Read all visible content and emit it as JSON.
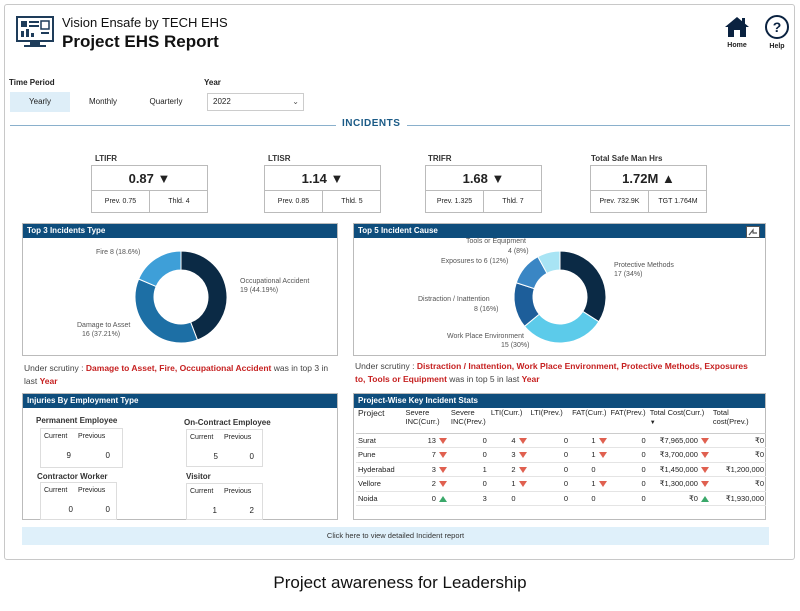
{
  "header": {
    "brand": "Vision Ensafe by TECH EHS",
    "title": "Project EHS Report",
    "home_label": "Home",
    "help_label": "Help"
  },
  "filters": {
    "time_period_label": "Time Period",
    "periods": [
      "Yearly",
      "Monthly",
      "Quarterly"
    ],
    "active_period": "Yearly",
    "year_label": "Year",
    "year_value": "2022"
  },
  "section_title": "INCIDENTS",
  "kpis": [
    {
      "label": "LTIFR",
      "value": "0.87",
      "arrow": "▼",
      "prev": "Prev.  0.75",
      "thld": "Thld.  4"
    },
    {
      "label": "LTISR",
      "value": "1.14",
      "arrow": "▼",
      "prev": "Prev. 0.85",
      "thld": "Thld. 5"
    },
    {
      "label": "TRIFR",
      "value": "1.68",
      "arrow": "▼",
      "prev": "Prev. 1.325",
      "thld": "Thld. 7"
    },
    {
      "label": "Total Safe Man Hrs",
      "value": "1.72M",
      "arrow": "▲",
      "prev": "Prev. 732.9K",
      "thld": "TGT 1.764M"
    }
  ],
  "top3": {
    "title": "Top 3 Incidents Type",
    "slices": [
      {
        "name": "Occupational Accident",
        "value": 19,
        "pct": "44.19%",
        "color": "#0b2a45"
      },
      {
        "name": "Damage to Asset",
        "value": 16,
        "pct": "37.21%",
        "color": "#1d6fa5"
      },
      {
        "name": "Fire",
        "value": 8,
        "pct": "18.6%",
        "color": "#3e9fd8"
      }
    ],
    "labels": {
      "fire": "Fire 8 (18.6%)",
      "occ_name": "Occupational Accident",
      "occ_val": "19 (44.19%)",
      "dmg_name": "Damage to Asset",
      "dmg_val": "16 (37.21%)"
    },
    "scrutiny_prefix": "Under scrutiny : ",
    "scrutiny_items": "Damage to Asset, Fire, Occupational Accident",
    "scrutiny_mid": " was in top 3 in last ",
    "scrutiny_year": "Year"
  },
  "top5": {
    "title": "Top 5 Incident Cause",
    "slices": [
      {
        "name": "Protective Methods",
        "value": 17,
        "pct": "34%",
        "color": "#0b2a45"
      },
      {
        "name": "Work Place Environment",
        "value": 15,
        "pct": "30%",
        "color": "#5ccbea"
      },
      {
        "name": "Distraction / Inattention",
        "value": 8,
        "pct": "16%",
        "color": "#1d5e9a"
      },
      {
        "name": "Exposures to",
        "value": 6,
        "pct": "12%",
        "color": "#3a86c4"
      },
      {
        "name": "Tools or Equipment",
        "value": 4,
        "pct": "8%",
        "color": "#a8e4f4"
      }
    ],
    "labels": {
      "tools_name": "Tools or Equipment",
      "tools_val": "4 (8%)",
      "exp": "Exposures to 6 (12%)",
      "prot_name": "Protective Methods",
      "prot_val": "17 (34%)",
      "dist_name": "Distraction / Inattention",
      "dist_val": "8 (16%)",
      "wpe_name": "Work Place Environment",
      "wpe_val": "15 (30%)"
    },
    "scrutiny_prefix": "Under scrutiny : ",
    "scrutiny_items": "Distraction / Inattention, Work Place Environment, Protective Methods, Exposures to, Tools or Equipment",
    "scrutiny_mid": " was in top 5 in last ",
    "scrutiny_year": "Year"
  },
  "injuries": {
    "title": "Injuries By Employment Type",
    "current_label": "Current",
    "previous_label": "Previous",
    "groups": [
      {
        "name": "Permanent Employee",
        "current": "9",
        "previous": "0"
      },
      {
        "name": "On-Contract Employee",
        "current": "5",
        "previous": "0"
      },
      {
        "name": "Contractor Worker",
        "current": "0",
        "previous": "0"
      },
      {
        "name": "Visitor",
        "current": "1",
        "previous": "2"
      }
    ]
  },
  "project_stats": {
    "title": "Project-Wise Key Incident Stats",
    "columns": [
      "Project",
      "Severe INC(Curr.)",
      "Severe INC(Prev.)",
      "LTI(Curr.)",
      "LTI(Prev.)",
      "FAT(Curr.)",
      "FAT(Prev.)",
      "Total Cost(Curr.)",
      "Total cost(Prev.)"
    ],
    "rows": [
      {
        "project": "Surat",
        "sev_c": "13",
        "sev_c_trend": "down",
        "sev_p": "0",
        "lti_c": "4",
        "lti_c_trend": "down",
        "lti_p": "0",
        "fat_c": "1",
        "fat_c_trend": "down",
        "fat_p": "0",
        "cost_c": "₹7,965,000",
        "cost_c_trend": "down",
        "cost_p": "₹0"
      },
      {
        "project": "Pune",
        "sev_c": "7",
        "sev_c_trend": "down",
        "sev_p": "0",
        "lti_c": "3",
        "lti_c_trend": "down",
        "lti_p": "0",
        "fat_c": "1",
        "fat_c_trend": "down",
        "fat_p": "0",
        "cost_c": "₹3,700,000",
        "cost_c_trend": "down",
        "cost_p": "₹0"
      },
      {
        "project": "Hyderabad",
        "sev_c": "3",
        "sev_c_trend": "down",
        "sev_p": "1",
        "lti_c": "2",
        "lti_c_trend": "down",
        "lti_p": "0",
        "fat_c": "0",
        "fat_c_trend": "",
        "fat_p": "0",
        "cost_c": "₹1,450,000",
        "cost_c_trend": "down",
        "cost_p": "₹1,200,000"
      },
      {
        "project": "Vellore",
        "sev_c": "2",
        "sev_c_trend": "down",
        "sev_p": "0",
        "lti_c": "1",
        "lti_c_trend": "down",
        "lti_p": "0",
        "fat_c": "1",
        "fat_c_trend": "down",
        "fat_p": "0",
        "cost_c": "₹1,300,000",
        "cost_c_trend": "down",
        "cost_p": "₹0"
      },
      {
        "project": "Noida",
        "sev_c": "0",
        "sev_c_trend": "up",
        "sev_p": "3",
        "lti_c": "0",
        "lti_c_trend": "",
        "lti_p": "0",
        "fat_c": "0",
        "fat_c_trend": "",
        "fat_p": "0",
        "cost_c": "₹0",
        "cost_c_trend": "up",
        "cost_p": "₹1,930,000"
      }
    ]
  },
  "cta_label": "Click here to view detailed Incident report",
  "caption": "Project awareness for Leadership",
  "icons": {
    "home": "home-icon",
    "help": "help-icon",
    "logo": "dashboard-logo-icon",
    "focus": "focus-mode-icon"
  }
}
